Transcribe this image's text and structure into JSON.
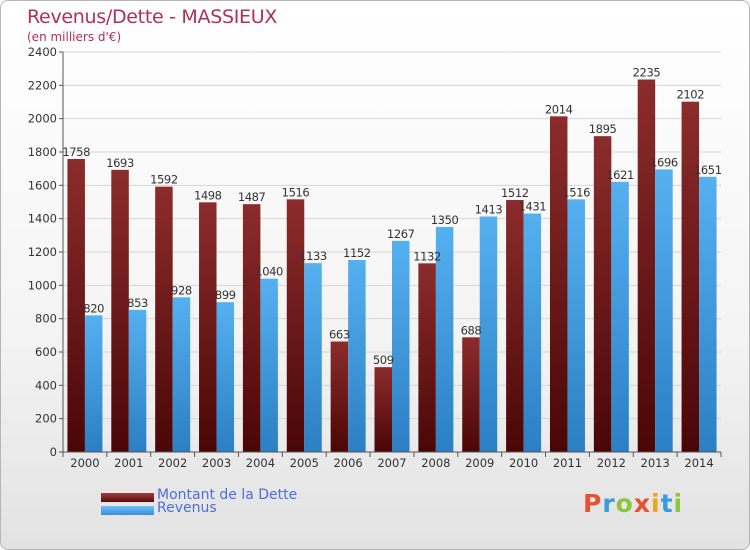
{
  "header": {
    "title": "Revenus/Dette - MASSIEUX",
    "subtitle": "(en milliers d'€)"
  },
  "legend": {
    "items": [
      {
        "label": "Montant de la Dette",
        "color": "#7a1f1f"
      },
      {
        "label": "Revenus",
        "color": "#4aa3e8"
      }
    ]
  },
  "logo": {
    "text": "Proxiti",
    "letters": [
      "P",
      "r",
      "o",
      "x",
      "i",
      "t",
      "i"
    ],
    "colors": [
      "#e8512f",
      "#3a9be0",
      "#8cc63f",
      "#e8512f",
      "#f4a11c",
      "#3a9be0",
      "#8cc63f"
    ]
  },
  "chart_data": {
    "type": "bar",
    "title": "Revenus/Dette - MASSIEUX",
    "subtitle": "(en milliers d'€)",
    "categories": [
      "2000",
      "2001",
      "2002",
      "2003",
      "2004",
      "2005",
      "2006",
      "2007",
      "2008",
      "2009",
      "2010",
      "2011",
      "2012",
      "2013",
      "2014"
    ],
    "series": [
      {
        "name": "Montant de la Dette",
        "color": "#7a1f1f",
        "values": [
          1758,
          1693,
          1592,
          1498,
          1487,
          1516,
          663,
          509,
          1132,
          688,
          1512,
          2014,
          1895,
          2235,
          2102
        ]
      },
      {
        "name": "Revenus",
        "color": "#4aa3e8",
        "values": [
          820,
          853,
          928,
          899,
          1040,
          1133,
          1152,
          1267,
          1350,
          1413,
          1431,
          1516,
          1621,
          1696,
          1651
        ]
      }
    ],
    "data_labels": {
      "Montant de la Dette": [
        "1758",
        "1693",
        "1592",
        "1498",
        "1487",
        "1516",
        "663",
        "509",
        "1132",
        "688",
        "1512",
        "2014",
        "1895",
        "2235",
        "2102"
      ],
      "Revenus": [
        "820",
        "853",
        "928",
        "899",
        "1040",
        "1133",
        "1152",
        "1267",
        "1350",
        "1413",
        "1431",
        "1516",
        "1621",
        "1696",
        "1651"
      ]
    },
    "ylim": [
      0,
      2400
    ],
    "yticks": [
      0,
      200,
      400,
      600,
      800,
      1000,
      1200,
      1400,
      1600,
      1800,
      2000,
      2200,
      2400
    ],
    "grid": true,
    "legend_position": "bottom-left"
  }
}
